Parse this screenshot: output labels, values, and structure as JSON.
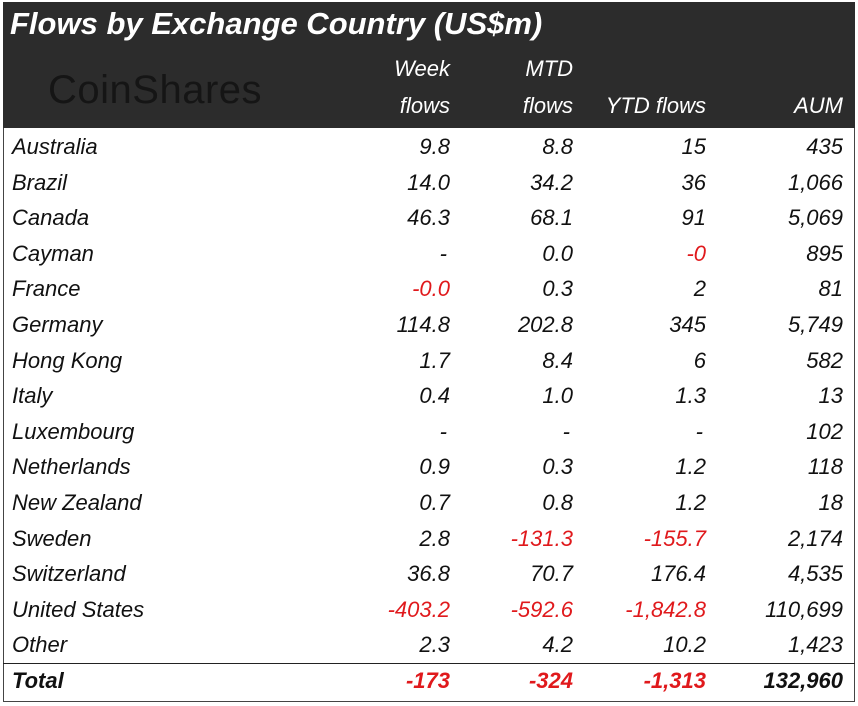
{
  "header": {
    "title": "Flows by Exchange Country (US$m)",
    "logo": "CoinShares"
  },
  "table": {
    "columns": [
      [
        "Week",
        "flows"
      ],
      [
        "MTD",
        "flows"
      ],
      [
        "YTD flows"
      ],
      [
        "AUM"
      ]
    ],
    "rows": [
      [
        "Australia",
        "9.8",
        "8.8",
        "15",
        "435"
      ],
      [
        "Brazil",
        "14.0",
        "34.2",
        "36",
        "1,066"
      ],
      [
        "Canada",
        "46.3",
        "68.1",
        "91",
        "5,069"
      ],
      [
        "Cayman",
        "-",
        "0.0",
        "-0",
        "895"
      ],
      [
        "France",
        "-0.0",
        "0.3",
        "2",
        "81"
      ],
      [
        "Germany",
        "114.8",
        "202.8",
        "345",
        "5,749"
      ],
      [
        "Hong Kong",
        "1.7",
        "8.4",
        "6",
        "582"
      ],
      [
        "Italy",
        "0.4",
        "1.0",
        "1.3",
        "13"
      ],
      [
        "Luxembourg",
        "-",
        "-",
        "-",
        "102"
      ],
      [
        "Netherlands",
        "0.9",
        "0.3",
        "1.2",
        "118"
      ],
      [
        "New Zealand",
        "0.7",
        "0.8",
        "1.2",
        "18"
      ],
      [
        "Sweden",
        "2.8",
        "-131.3",
        "-155.7",
        "2,174"
      ],
      [
        "Switzerland",
        "36.8",
        "70.7",
        "176.4",
        "4,535"
      ],
      [
        "United States",
        "-403.2",
        "-592.6",
        "-1,842.8",
        "110,699"
      ],
      [
        "Other",
        "2.3",
        "4.2",
        "10.2",
        "1,423"
      ]
    ],
    "total": [
      "Total",
      "-173",
      "-324",
      "-1,313",
      "132,960"
    ]
  }
}
